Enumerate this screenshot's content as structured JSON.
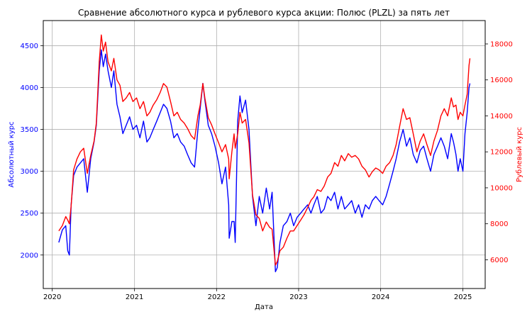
{
  "chart_data": {
    "type": "line",
    "title": "Сравнение абсолютного курса и рублевого курса акции: Полюс (PLZL) за пять лет",
    "xlabel": "Дата",
    "ylabel_left": "Абсолютный курс",
    "ylabel_right": "Рублевый курс",
    "xlim": [
      "2019-11-22",
      "2025-04-10"
    ],
    "ylim_left": [
      1600,
      4800
    ],
    "ylim_right": [
      4400,
      19300
    ],
    "xticks": [
      "2020",
      "2021",
      "2022",
      "2023",
      "2024",
      "2025"
    ],
    "xtick_dates": [
      "2020-01-01",
      "2021-01-01",
      "2022-01-01",
      "2023-01-01",
      "2024-01-01",
      "2025-01-01"
    ],
    "yticks_left": [
      "2000",
      "2500",
      "3000",
      "3500",
      "4000",
      "4500"
    ],
    "yticks_right": [
      "6000",
      "8000",
      "10000",
      "12000",
      "14000",
      "16000",
      "18000"
    ],
    "grid": true,
    "colors": {
      "left_axis": "#0000ff",
      "right_axis": "#ff0000"
    },
    "series": [
      {
        "axis": "left",
        "color": "#0000ff",
        "points": [
          [
            "2020-01-30",
            2150
          ],
          [
            "2020-02-15",
            2300
          ],
          [
            "2020-03-01",
            2350
          ],
          [
            "2020-03-10",
            2050
          ],
          [
            "2020-03-17",
            2000
          ],
          [
            "2020-03-25",
            2600
          ],
          [
            "2020-04-05",
            2950
          ],
          [
            "2020-04-20",
            3050
          ],
          [
            "2020-05-05",
            3100
          ],
          [
            "2020-05-20",
            3150
          ],
          [
            "2020-06-05",
            2750
          ],
          [
            "2020-06-20",
            3150
          ],
          [
            "2020-07-05",
            3350
          ],
          [
            "2020-07-15",
            3550
          ],
          [
            "2020-07-28",
            4200
          ],
          [
            "2020-08-06",
            4450
          ],
          [
            "2020-08-15",
            4250
          ],
          [
            "2020-08-25",
            4400
          ],
          [
            "2020-09-05",
            4200
          ],
          [
            "2020-09-20",
            4000
          ],
          [
            "2020-10-01",
            4200
          ],
          [
            "2020-10-15",
            3800
          ],
          [
            "2020-10-28",
            3650
          ],
          [
            "2020-11-10",
            3450
          ],
          [
            "2020-11-25",
            3550
          ],
          [
            "2020-12-10",
            3650
          ],
          [
            "2020-12-25",
            3500
          ],
          [
            "2021-01-10",
            3550
          ],
          [
            "2021-01-25",
            3400
          ],
          [
            "2021-02-10",
            3600
          ],
          [
            "2021-02-25",
            3350
          ],
          [
            "2021-03-10",
            3400
          ],
          [
            "2021-03-25",
            3500
          ],
          [
            "2021-04-10",
            3600
          ],
          [
            "2021-04-25",
            3700
          ],
          [
            "2021-05-10",
            3800
          ],
          [
            "2021-05-25",
            3750
          ],
          [
            "2021-06-10",
            3600
          ],
          [
            "2021-06-25",
            3400
          ],
          [
            "2021-07-10",
            3450
          ],
          [
            "2021-07-25",
            3350
          ],
          [
            "2021-08-10",
            3300
          ],
          [
            "2021-08-25",
            3200
          ],
          [
            "2021-09-10",
            3100
          ],
          [
            "2021-09-25",
            3050
          ],
          [
            "2021-10-10",
            3500
          ],
          [
            "2021-10-20",
            3750
          ],
          [
            "2021-11-01",
            4050
          ],
          [
            "2021-11-10",
            3850
          ],
          [
            "2021-11-25",
            3550
          ],
          [
            "2021-12-10",
            3450
          ],
          [
            "2021-12-25",
            3300
          ],
          [
            "2022-01-10",
            3100
          ],
          [
            "2022-01-25",
            2850
          ],
          [
            "2022-02-10",
            3050
          ],
          [
            "2022-02-24",
            2600
          ],
          [
            "2022-02-26",
            2200
          ],
          [
            "2022-03-10",
            2400
          ],
          [
            "2022-03-20",
            2400
          ],
          [
            "2022-03-25",
            2150
          ],
          [
            "2022-04-05",
            3600
          ],
          [
            "2022-04-15",
            3900
          ],
          [
            "2022-04-25",
            3700
          ],
          [
            "2022-05-10",
            3850
          ],
          [
            "2022-05-25",
            3500
          ],
          [
            "2022-06-10",
            2700
          ],
          [
            "2022-06-25",
            2350
          ],
          [
            "2022-07-10",
            2700
          ],
          [
            "2022-07-25",
            2500
          ],
          [
            "2022-08-10",
            2800
          ],
          [
            "2022-08-25",
            2550
          ],
          [
            "2022-09-05",
            2750
          ],
          [
            "2022-09-20",
            1800
          ],
          [
            "2022-09-28",
            1850
          ],
          [
            "2022-10-10",
            2150
          ],
          [
            "2022-10-25",
            2350
          ],
          [
            "2022-11-10",
            2400
          ],
          [
            "2022-11-25",
            2500
          ],
          [
            "2022-12-10",
            2350
          ],
          [
            "2022-12-25",
            2450
          ],
          [
            "2023-01-10",
            2500
          ],
          [
            "2023-01-25",
            2550
          ],
          [
            "2023-02-10",
            2600
          ],
          [
            "2023-02-25",
            2500
          ],
          [
            "2023-03-10",
            2600
          ],
          [
            "2023-03-25",
            2700
          ],
          [
            "2023-04-10",
            2500
          ],
          [
            "2023-04-25",
            2550
          ],
          [
            "2023-05-10",
            2700
          ],
          [
            "2023-05-25",
            2650
          ],
          [
            "2023-06-10",
            2750
          ],
          [
            "2023-06-25",
            2550
          ],
          [
            "2023-07-10",
            2700
          ],
          [
            "2023-07-25",
            2550
          ],
          [
            "2023-08-10",
            2600
          ],
          [
            "2023-08-25",
            2650
          ],
          [
            "2023-09-10",
            2500
          ],
          [
            "2023-09-25",
            2600
          ],
          [
            "2023-10-10",
            2450
          ],
          [
            "2023-10-25",
            2600
          ],
          [
            "2023-11-10",
            2550
          ],
          [
            "2023-11-25",
            2650
          ],
          [
            "2023-12-10",
            2700
          ],
          [
            "2023-12-25",
            2650
          ],
          [
            "2024-01-10",
            2600
          ],
          [
            "2024-01-25",
            2700
          ],
          [
            "2024-02-10",
            2850
          ],
          [
            "2024-02-25",
            3000
          ],
          [
            "2024-03-10",
            3150
          ],
          [
            "2024-03-25",
            3350
          ],
          [
            "2024-04-10",
            3500
          ],
          [
            "2024-04-25",
            3300
          ],
          [
            "2024-05-10",
            3400
          ],
          [
            "2024-05-25",
            3200
          ],
          [
            "2024-06-10",
            3100
          ],
          [
            "2024-06-25",
            3250
          ],
          [
            "2024-07-10",
            3300
          ],
          [
            "2024-07-25",
            3150
          ],
          [
            "2024-08-10",
            3000
          ],
          [
            "2024-08-25",
            3200
          ],
          [
            "2024-09-10",
            3300
          ],
          [
            "2024-09-25",
            3400
          ],
          [
            "2024-10-10",
            3300
          ],
          [
            "2024-10-25",
            3150
          ],
          [
            "2024-11-10",
            3450
          ],
          [
            "2024-11-20",
            3350
          ],
          [
            "2024-12-01",
            3200
          ],
          [
            "2024-12-10",
            3000
          ],
          [
            "2024-12-20",
            3150
          ],
          [
            "2025-01-01",
            3000
          ],
          [
            "2025-01-10",
            3450
          ],
          [
            "2025-01-20",
            3700
          ],
          [
            "2025-01-28",
            4000
          ],
          [
            "2025-02-01",
            4050
          ]
        ]
      },
      {
        "axis": "right",
        "color": "#ff0000",
        "points": [
          [
            "2020-01-30",
            7600
          ],
          [
            "2020-02-15",
            7900
          ],
          [
            "2020-03-01",
            8400
          ],
          [
            "2020-03-10",
            8200
          ],
          [
            "2020-03-17",
            8000
          ],
          [
            "2020-03-25",
            9000
          ],
          [
            "2020-04-05",
            11000
          ],
          [
            "2020-04-20",
            11600
          ],
          [
            "2020-05-05",
            12000
          ],
          [
            "2020-05-20",
            12200
          ],
          [
            "2020-06-05",
            10800
          ],
          [
            "2020-06-20",
            11800
          ],
          [
            "2020-07-05",
            12600
          ],
          [
            "2020-07-15",
            13600
          ],
          [
            "2020-07-28",
            17000
          ],
          [
            "2020-08-06",
            18500
          ],
          [
            "2020-08-15",
            17600
          ],
          [
            "2020-08-25",
            18100
          ],
          [
            "2020-09-05",
            17000
          ],
          [
            "2020-09-20",
            16500
          ],
          [
            "2020-10-01",
            17200
          ],
          [
            "2020-10-15",
            16000
          ],
          [
            "2020-10-28",
            15700
          ],
          [
            "2020-11-10",
            14800
          ],
          [
            "2020-11-25",
            15000
          ],
          [
            "2020-12-10",
            15300
          ],
          [
            "2020-12-25",
            14800
          ],
          [
            "2021-01-10",
            15000
          ],
          [
            "2021-01-25",
            14400
          ],
          [
            "2021-02-10",
            14800
          ],
          [
            "2021-02-25",
            14000
          ],
          [
            "2021-03-10",
            14200
          ],
          [
            "2021-03-25",
            14600
          ],
          [
            "2021-04-10",
            14900
          ],
          [
            "2021-04-25",
            15300
          ],
          [
            "2021-05-10",
            15800
          ],
          [
            "2021-05-25",
            15600
          ],
          [
            "2021-06-10",
            14800
          ],
          [
            "2021-06-25",
            14000
          ],
          [
            "2021-07-10",
            14200
          ],
          [
            "2021-07-25",
            13800
          ],
          [
            "2021-08-10",
            13600
          ],
          [
            "2021-08-25",
            13300
          ],
          [
            "2021-09-10",
            12900
          ],
          [
            "2021-09-25",
            12700
          ],
          [
            "2021-10-10",
            14000
          ],
          [
            "2021-10-20",
            14600
          ],
          [
            "2021-11-01",
            15800
          ],
          [
            "2021-11-10",
            15000
          ],
          [
            "2021-11-25",
            13900
          ],
          [
            "2021-12-10",
            13500
          ],
          [
            "2021-12-25",
            13000
          ],
          [
            "2022-01-10",
            12500
          ],
          [
            "2022-01-25",
            12000
          ],
          [
            "2022-02-10",
            12400
          ],
          [
            "2022-02-24",
            11600
          ],
          [
            "2022-02-26",
            10500
          ],
          [
            "2022-03-10",
            12000
          ],
          [
            "2022-03-20",
            13000
          ],
          [
            "2022-03-25",
            12200
          ],
          [
            "2022-04-05",
            13000
          ],
          [
            "2022-04-15",
            14200
          ],
          [
            "2022-04-25",
            13600
          ],
          [
            "2022-05-10",
            13800
          ],
          [
            "2022-05-25",
            12500
          ],
          [
            "2022-06-10",
            9600
          ],
          [
            "2022-06-25",
            8500
          ],
          [
            "2022-07-10",
            8300
          ],
          [
            "2022-07-25",
            7600
          ],
          [
            "2022-08-10",
            8100
          ],
          [
            "2022-08-25",
            7800
          ],
          [
            "2022-09-05",
            7700
          ],
          [
            "2022-09-20",
            5700
          ],
          [
            "2022-09-28",
            5900
          ],
          [
            "2022-10-10",
            6500
          ],
          [
            "2022-10-25",
            6700
          ],
          [
            "2022-11-10",
            7200
          ],
          [
            "2022-11-25",
            7600
          ],
          [
            "2022-12-10",
            7600
          ],
          [
            "2022-12-25",
            7900
          ],
          [
            "2023-01-10",
            8200
          ],
          [
            "2023-01-25",
            8500
          ],
          [
            "2023-02-10",
            8900
          ],
          [
            "2023-02-25",
            9300
          ],
          [
            "2023-03-10",
            9500
          ],
          [
            "2023-03-25",
            9900
          ],
          [
            "2023-04-10",
            9800
          ],
          [
            "2023-04-25",
            10100
          ],
          [
            "2023-05-10",
            10600
          ],
          [
            "2023-05-25",
            10800
          ],
          [
            "2023-06-10",
            11400
          ],
          [
            "2023-06-25",
            11200
          ],
          [
            "2023-07-10",
            11800
          ],
          [
            "2023-07-25",
            11500
          ],
          [
            "2023-08-10",
            11900
          ],
          [
            "2023-08-25",
            11700
          ],
          [
            "2023-09-10",
            11800
          ],
          [
            "2023-09-25",
            11600
          ],
          [
            "2023-10-10",
            11200
          ],
          [
            "2023-10-25",
            11000
          ],
          [
            "2023-11-10",
            10600
          ],
          [
            "2023-11-25",
            10900
          ],
          [
            "2023-12-10",
            11100
          ],
          [
            "2023-12-25",
            11000
          ],
          [
            "2024-01-10",
            10800
          ],
          [
            "2024-01-25",
            11200
          ],
          [
            "2024-02-10",
            11400
          ],
          [
            "2024-02-25",
            11800
          ],
          [
            "2024-03-10",
            12400
          ],
          [
            "2024-03-25",
            13400
          ],
          [
            "2024-04-10",
            14400
          ],
          [
            "2024-04-25",
            13800
          ],
          [
            "2024-05-10",
            13900
          ],
          [
            "2024-05-25",
            13000
          ],
          [
            "2024-06-10",
            12000
          ],
          [
            "2024-06-25",
            12600
          ],
          [
            "2024-07-10",
            13000
          ],
          [
            "2024-07-25",
            12400
          ],
          [
            "2024-08-10",
            11800
          ],
          [
            "2024-08-25",
            12600
          ],
          [
            "2024-09-10",
            13200
          ],
          [
            "2024-09-25",
            14000
          ],
          [
            "2024-10-10",
            14400
          ],
          [
            "2024-10-25",
            14000
          ],
          [
            "2024-11-10",
            15000
          ],
          [
            "2024-11-20",
            14500
          ],
          [
            "2024-12-01",
            14600
          ],
          [
            "2024-12-10",
            13800
          ],
          [
            "2024-12-20",
            14200
          ],
          [
            "2025-01-01",
            14000
          ],
          [
            "2025-01-10",
            14600
          ],
          [
            "2025-01-20",
            15200
          ],
          [
            "2025-01-28",
            16800
          ],
          [
            "2025-02-01",
            17200
          ]
        ]
      }
    ]
  }
}
